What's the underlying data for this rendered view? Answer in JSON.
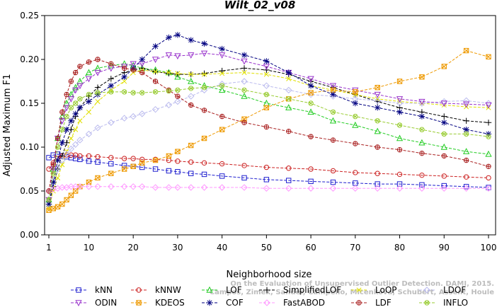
{
  "chart_data": {
    "type": "line",
    "title": "Wilt_02_v08",
    "xlabel": "Neighborhood size",
    "ylabel": "Adjusted Maximum F1",
    "xlim": [
      1,
      100
    ],
    "ylim": [
      0,
      0.25
    ],
    "x_ticks": [
      1,
      10,
      20,
      30,
      40,
      50,
      60,
      70,
      80,
      90,
      100
    ],
    "y_ticks": [
      "0.00",
      "0.05",
      "0.10",
      "0.15",
      "0.20",
      "0.25"
    ],
    "grid": false,
    "legend_position": "bottom",
    "x_kp": [
      1,
      2,
      3,
      4,
      5,
      6,
      7,
      8,
      10,
      12,
      15,
      18,
      20,
      22,
      25,
      28,
      30,
      33,
      36,
      40,
      45,
      50,
      55,
      60,
      65,
      70,
      75,
      80,
      85,
      90,
      95,
      100
    ],
    "series": [
      {
        "name": "kNN",
        "color": "#1f1fcf",
        "marker": "square",
        "values": [
          0.088,
          0.091,
          0.092,
          0.09,
          0.089,
          0.088,
          0.087,
          0.086,
          0.084,
          0.083,
          0.081,
          0.079,
          0.078,
          0.077,
          0.075,
          0.073,
          0.072,
          0.07,
          0.069,
          0.067,
          0.065,
          0.063,
          0.062,
          0.061,
          0.06,
          0.059,
          0.058,
          0.058,
          0.057,
          0.056,
          0.055,
          0.054
        ]
      },
      {
        "name": "kNNW",
        "color": "#cc2222",
        "marker": "circle",
        "values": [
          0.075,
          0.082,
          0.087,
          0.09,
          0.091,
          0.091,
          0.091,
          0.09,
          0.09,
          0.089,
          0.088,
          0.087,
          0.087,
          0.086,
          0.086,
          0.085,
          0.084,
          0.083,
          0.082,
          0.081,
          0.079,
          0.077,
          0.076,
          0.075,
          0.073,
          0.071,
          0.07,
          0.069,
          0.068,
          0.067,
          0.066,
          0.065
        ]
      },
      {
        "name": "LOF",
        "color": "#22cc22",
        "marker": "triangle",
        "values": [
          0.04,
          0.075,
          0.11,
          0.135,
          0.15,
          0.16,
          0.168,
          0.175,
          0.185,
          0.19,
          0.193,
          0.195,
          0.193,
          0.19,
          0.188,
          0.185,
          0.18,
          0.175,
          0.17,
          0.165,
          0.158,
          0.15,
          0.145,
          0.14,
          0.13,
          0.125,
          0.118,
          0.11,
          0.105,
          0.1,
          0.095,
          0.092
        ]
      },
      {
        "name": "SimplifiedLOF",
        "color": "#000000",
        "marker": "plus",
        "values": [
          0.035,
          0.055,
          0.075,
          0.09,
          0.105,
          0.12,
          0.135,
          0.145,
          0.158,
          0.168,
          0.178,
          0.185,
          0.188,
          0.19,
          0.186,
          0.184,
          0.183,
          0.183,
          0.184,
          0.187,
          0.19,
          0.188,
          0.183,
          0.175,
          0.168,
          0.16,
          0.152,
          0.145,
          0.14,
          0.135,
          0.13,
          0.128
        ]
      },
      {
        "name": "LoOP",
        "color": "#e0e000",
        "marker": "cross",
        "values": [
          0.03,
          0.05,
          0.065,
          0.08,
          0.095,
          0.11,
          0.12,
          0.13,
          0.14,
          0.152,
          0.165,
          0.175,
          0.185,
          0.188,
          0.186,
          0.185,
          0.184,
          0.183,
          0.183,
          0.184,
          0.185,
          0.183,
          0.178,
          0.17,
          0.165,
          0.16,
          0.155,
          0.152,
          0.15,
          0.148,
          0.146,
          0.145
        ]
      },
      {
        "name": "LDOF",
        "color": "#bbbbee",
        "marker": "diamond",
        "values": [
          0.05,
          0.06,
          0.075,
          0.085,
          0.092,
          0.098,
          0.103,
          0.108,
          0.115,
          0.122,
          0.128,
          0.133,
          0.135,
          0.138,
          0.143,
          0.148,
          0.152,
          0.158,
          0.165,
          0.172,
          0.175,
          0.17,
          0.165,
          0.16,
          0.158,
          0.155,
          0.153,
          0.15,
          0.15,
          0.152,
          0.153,
          0.15
        ]
      },
      {
        "name": "ODIN",
        "color": "#9933cc",
        "marker": "triangle-down",
        "values": [
          0.04,
          0.075,
          0.11,
          0.13,
          0.145,
          0.155,
          0.165,
          0.17,
          0.178,
          0.185,
          0.19,
          0.192,
          0.195,
          0.195,
          0.2,
          0.205,
          0.204,
          0.205,
          0.207,
          0.205,
          0.198,
          0.192,
          0.185,
          0.178,
          0.17,
          0.165,
          0.16,
          0.155,
          0.152,
          0.15,
          0.149,
          0.148
        ]
      },
      {
        "name": "KDEOS",
        "color": "#ee9900",
        "marker": "square-x",
        "values": [
          0.028,
          0.03,
          0.032,
          0.035,
          0.04,
          0.045,
          0.05,
          0.055,
          0.06,
          0.065,
          0.07,
          0.075,
          0.078,
          0.082,
          0.085,
          0.09,
          0.095,
          0.102,
          0.11,
          0.12,
          0.132,
          0.145,
          0.155,
          0.162,
          0.165,
          0.163,
          0.168,
          0.175,
          0.18,
          0.192,
          0.21,
          0.203
        ]
      },
      {
        "name": "COF",
        "color": "#000080",
        "marker": "star",
        "values": [
          0.035,
          0.06,
          0.085,
          0.105,
          0.12,
          0.13,
          0.138,
          0.145,
          0.152,
          0.16,
          0.17,
          0.18,
          0.19,
          0.2,
          0.215,
          0.225,
          0.228,
          0.222,
          0.218,
          0.212,
          0.205,
          0.198,
          0.185,
          0.17,
          0.16,
          0.15,
          0.145,
          0.14,
          0.135,
          0.128,
          0.12,
          0.115
        ]
      },
      {
        "name": "FastABOD",
        "color": "#ff99ff",
        "marker": "diamond",
        "values": [
          0.05,
          0.052,
          0.053,
          0.054,
          0.054,
          0.055,
          0.055,
          0.055,
          0.055,
          0.055,
          0.055,
          0.055,
          0.055,
          0.055,
          0.054,
          0.054,
          0.054,
          0.054,
          0.054,
          0.054,
          0.054,
          0.053,
          0.053,
          0.053,
          0.053,
          0.053,
          0.053,
          0.053,
          0.053,
          0.053,
          0.053,
          0.053
        ]
      },
      {
        "name": "LDF",
        "color": "#aa2222",
        "marker": "circle-plus",
        "values": [
          0.05,
          0.08,
          0.11,
          0.14,
          0.16,
          0.175,
          0.185,
          0.192,
          0.197,
          0.2,
          0.195,
          0.19,
          0.188,
          0.185,
          0.175,
          0.165,
          0.158,
          0.148,
          0.142,
          0.135,
          0.128,
          0.123,
          0.118,
          0.112,
          0.108,
          0.104,
          0.1,
          0.097,
          0.093,
          0.09,
          0.085,
          0.078
        ]
      },
      {
        "name": "INFLO",
        "color": "#99cc33",
        "marker": "circle-x",
        "values": [
          0.04,
          0.07,
          0.1,
          0.12,
          0.135,
          0.145,
          0.15,
          0.155,
          0.16,
          0.162,
          0.163,
          0.163,
          0.162,
          0.162,
          0.163,
          0.164,
          0.165,
          0.167,
          0.168,
          0.17,
          0.165,
          0.16,
          0.155,
          0.15,
          0.14,
          0.135,
          0.13,
          0.125,
          0.12,
          0.115,
          0.115,
          0.112
        ]
      }
    ]
  },
  "watermark": {
    "line1": "Campos, Zimek, Sander, Campello, Micenkova, Schubert, Assent, Houle",
    "line2": "On the Evaluation of Unsupervised Outlier Detection. DAMI, 2015."
  }
}
